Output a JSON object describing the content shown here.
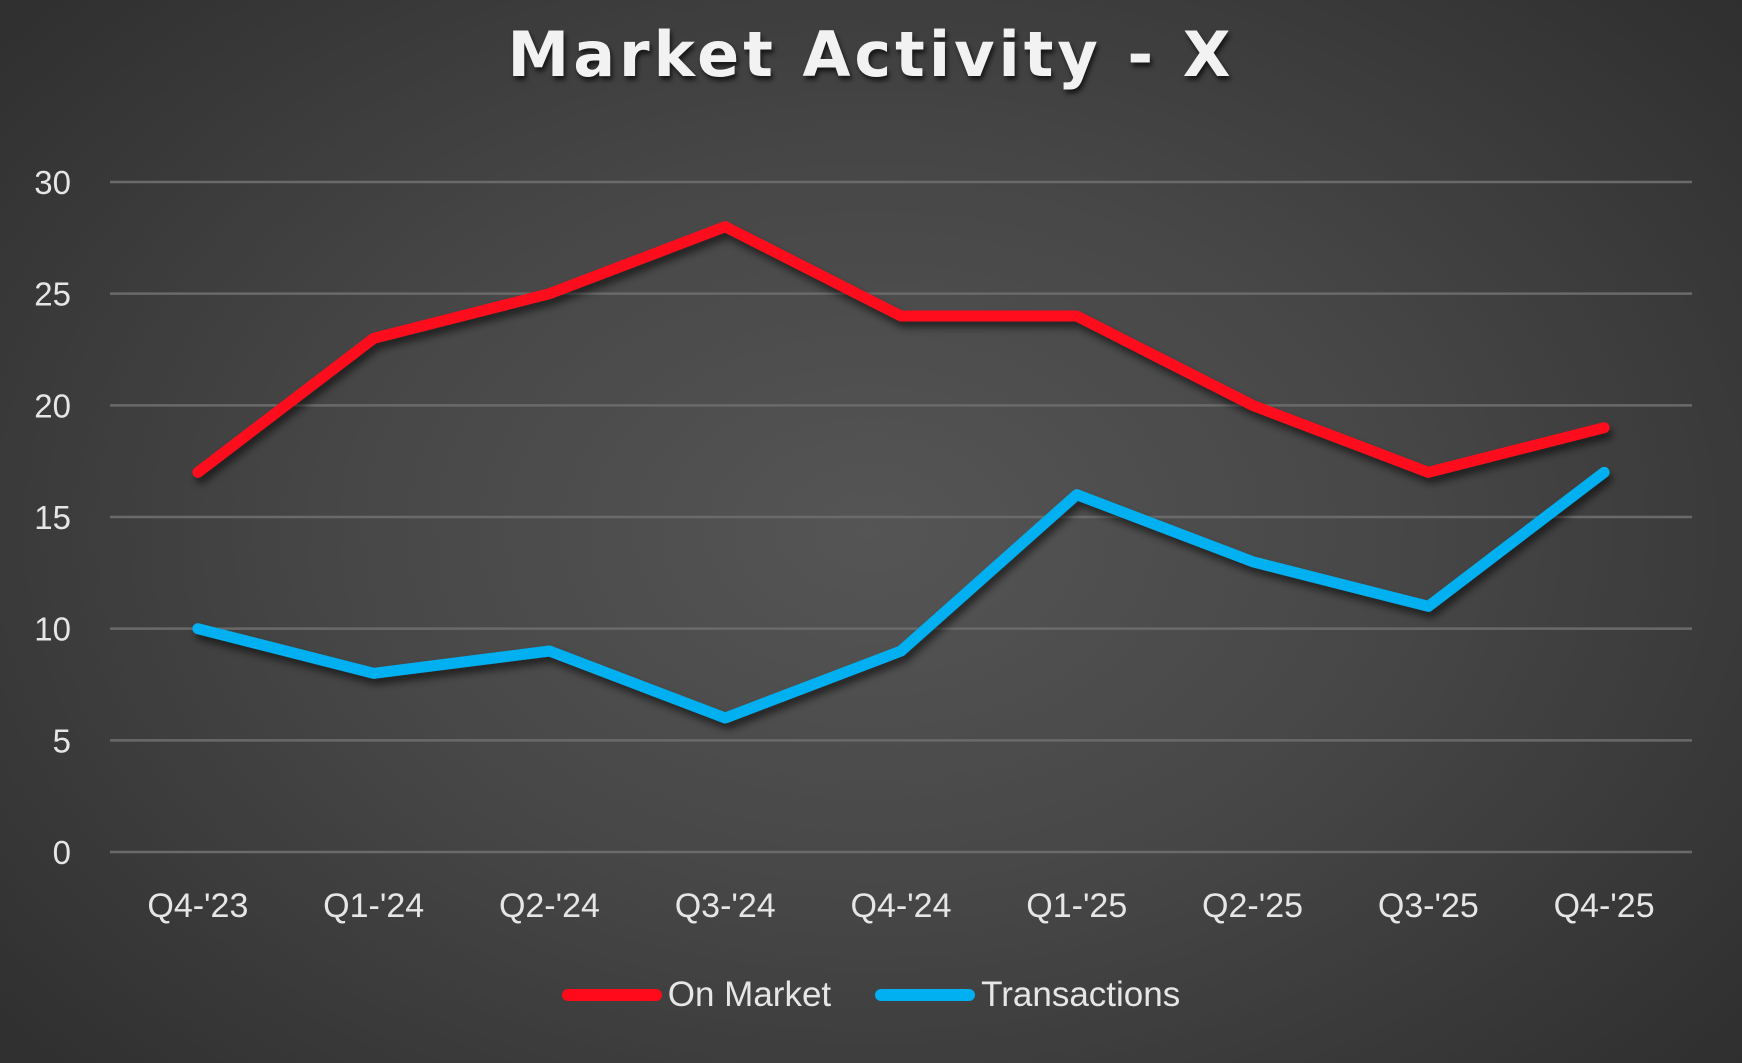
{
  "chart_data": {
    "type": "line",
    "title": "Market Activity - X",
    "xlabel": "",
    "ylabel": "",
    "categories": [
      "Q4-'23",
      "Q1-'24",
      "Q2-'24",
      "Q3-'24",
      "Q4-'24",
      "Q1-'25",
      "Q2-'25",
      "Q3-'25",
      "Q4-'25"
    ],
    "series": [
      {
        "name": "On Market",
        "color": "#FF0A1A",
        "values": [
          17,
          23,
          25,
          28,
          24,
          24,
          20,
          17,
          19
        ]
      },
      {
        "name": "Transactions",
        "color": "#00B0F0",
        "values": [
          10,
          8,
          9,
          6,
          9,
          16,
          13,
          11,
          17
        ]
      }
    ],
    "ylim": [
      0,
      30
    ],
    "yticks": [
      0,
      5,
      10,
      15,
      20,
      25,
      30
    ],
    "grid": true,
    "legend_position": "bottom"
  }
}
